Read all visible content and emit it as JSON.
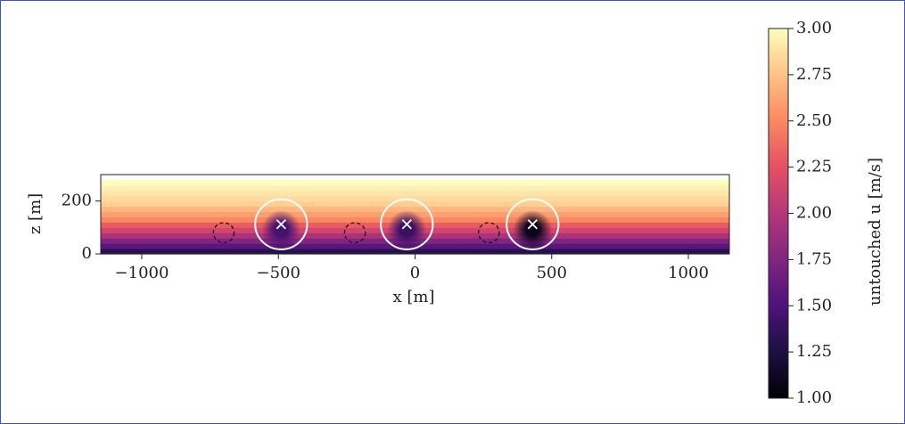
{
  "chart_data": {
    "type": "heatmap",
    "x_label": "x [m]",
    "y_label": "z [m]",
    "colorbar_label": "untouched u [m/s]",
    "xlim": [
      -1150,
      1150
    ],
    "ylim": [
      0,
      300
    ],
    "xticks": [
      {
        "value": -1000,
        "label": "−1000"
      },
      {
        "value": -500,
        "label": "−500"
      },
      0,
      500,
      1000
    ],
    "yticks": [
      0,
      200
    ],
    "clim": [
      1,
      3
    ],
    "cticks": [
      {
        "value": 1,
        "label": "1.00"
      },
      {
        "value": 1.25,
        "label": "1.25"
      },
      {
        "value": 1.5,
        "label": "1.50"
      },
      {
        "value": 1.75,
        "label": "1.75"
      },
      {
        "value": 2,
        "label": "2.00"
      },
      {
        "value": 2.25,
        "label": "2.25"
      },
      {
        "value": 2.5,
        "label": "2.50"
      },
      {
        "value": 2.75,
        "label": "2.75"
      },
      {
        "value": 3,
        "label": "3.00"
      }
    ],
    "colormap": "magma",
    "field": {
      "z": [
        0,
        20,
        40,
        60,
        80,
        100,
        120,
        140,
        160,
        180,
        200,
        220,
        240,
        260
      ],
      "u": [
        1.3,
        1.55,
        1.75,
        1.95,
        2.15,
        2.3,
        2.5,
        2.6,
        2.7,
        2.8,
        2.85,
        2.9,
        2.95,
        3.0
      ]
    },
    "turbines": {
      "x": [
        -490,
        -30,
        430
      ],
      "z": [
        112,
        112,
        112
      ],
      "radius": [
        95,
        95,
        95
      ],
      "wake_u": [
        1.45,
        1.4,
        1.1
      ]
    },
    "dashed_circles": {
      "x": [
        -700,
        -220,
        270
      ],
      "z": [
        80,
        80,
        80
      ],
      "radius": [
        38,
        38,
        38
      ]
    }
  }
}
